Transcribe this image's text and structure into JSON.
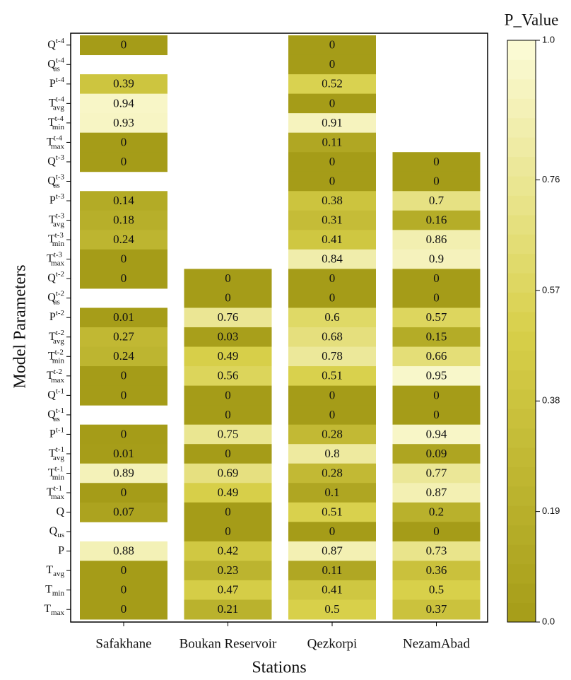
{
  "chart_data": {
    "type": "heatmap",
    "xlabel": "Stations",
    "ylabel": "Model Parameters",
    "colorbar_title": "P_Value",
    "colorscale": [
      "#a59c18",
      "#d8d04a",
      "#fcfbd8"
    ],
    "columns": [
      "Safakhane",
      "Boukan Reservoir",
      "Qezkorpi",
      "NezamAbad"
    ],
    "rows": [
      {
        "base": "Q",
        "sup": "t-4"
      },
      {
        "base": "Q",
        "sub": "us",
        "sup": "t-4"
      },
      {
        "base": "P",
        "sup": "t-4"
      },
      {
        "base": "T",
        "sub": "avg",
        "sup": "t-4"
      },
      {
        "base": "T",
        "sub": "min",
        "sup": "t-4"
      },
      {
        "base": "T",
        "sub": "max",
        "sup": "t-4"
      },
      {
        "base": "Q",
        "sup": "t-3"
      },
      {
        "base": "Q",
        "sub": "us",
        "sup": "t-3"
      },
      {
        "base": "P",
        "sup": "t-3"
      },
      {
        "base": "T",
        "sub": "avg",
        "sup": "t-3"
      },
      {
        "base": "T",
        "sub": "min",
        "sup": "t-3"
      },
      {
        "base": "T",
        "sub": "max",
        "sup": "t-3"
      },
      {
        "base": "Q",
        "sup": "t-2"
      },
      {
        "base": "Q",
        "sub": "us",
        "sup": "t-2"
      },
      {
        "base": "P",
        "sup": "t-2"
      },
      {
        "base": "T",
        "sub": "avg",
        "sup": "t-2"
      },
      {
        "base": "T",
        "sub": "min",
        "sup": "t-2"
      },
      {
        "base": "T",
        "sub": "max",
        "sup": "t-2"
      },
      {
        "base": "Q",
        "sup": "t-1"
      },
      {
        "base": "Q",
        "sub": "us",
        "sup": "t-1"
      },
      {
        "base": "P",
        "sup": "t-1"
      },
      {
        "base": "T",
        "sub": "avg",
        "sup": "t-1"
      },
      {
        "base": "T",
        "sub": "min",
        "sup": "t-1"
      },
      {
        "base": "T",
        "sub": "max",
        "sup": "t-1"
      },
      {
        "base": "Q"
      },
      {
        "base": "Q",
        "sub": "us"
      },
      {
        "base": "P"
      },
      {
        "base": "T",
        "sub": "avg"
      },
      {
        "base": "T",
        "sub": "min"
      },
      {
        "base": "T",
        "sub": "max"
      }
    ],
    "values": [
      [
        0,
        null,
        0.39,
        0.94,
        0.93,
        0,
        0,
        null,
        0.14,
        0.18,
        0.24,
        0,
        0,
        null,
        0.01,
        0.27,
        0.24,
        0,
        0,
        null,
        0,
        0.01,
        0.89,
        0,
        0.07,
        null,
        0.88,
        0,
        0,
        0
      ],
      [
        null,
        null,
        null,
        null,
        null,
        null,
        null,
        null,
        null,
        null,
        null,
        null,
        0,
        0,
        0.76,
        0.03,
        0.49,
        0.56,
        0,
        0,
        0.75,
        0,
        0.69,
        0.49,
        0,
        0,
        0.42,
        0.23,
        0.47,
        0.21
      ],
      [
        0,
        0,
        0.52,
        0,
        0.91,
        0.11,
        0,
        0,
        0.38,
        0.31,
        0.41,
        0.84,
        0,
        0,
        0.6,
        0.68,
        0.78,
        0.51,
        0,
        0,
        0.28,
        0.8,
        0.28,
        0.1,
        0.51,
        0,
        0.87,
        0.11,
        0.41,
        0.5
      ],
      [
        null,
        null,
        null,
        null,
        null,
        null,
        0,
        0,
        0.7,
        0.16,
        0.86,
        0.9,
        0,
        0,
        0.57,
        0.15,
        0.66,
        0.95,
        0,
        0,
        0.94,
        0.09,
        0.77,
        0.87,
        0.2,
        0,
        0.73,
        0.36,
        0.5,
        0.37
      ]
    ],
    "clim": [
      0,
      1
    ],
    "cticks": [
      {
        "value": 0,
        "label": "0.0"
      },
      0.19,
      0.38,
      0.57,
      0.76,
      {
        "value": 1,
        "label": "1.0"
      }
    ]
  }
}
